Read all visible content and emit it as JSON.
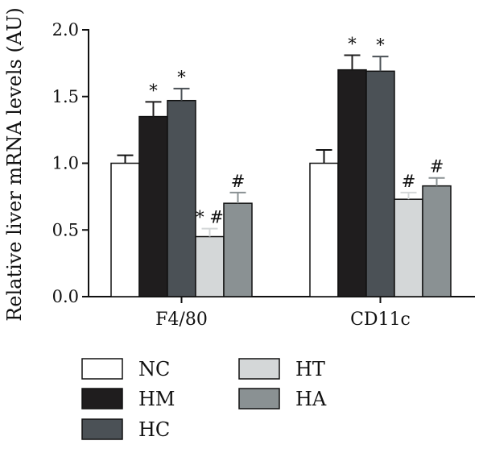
{
  "chart_data": {
    "type": "bar",
    "title": "",
    "xlabel": "",
    "ylabel": "Relative liver mRNA levels (AU)",
    "ylim": [
      0,
      2.0
    ],
    "yticks": [
      "0.0",
      "0.5",
      "1.0",
      "1.5",
      "2.0"
    ],
    "categories": [
      "F4/80",
      "CD11c"
    ],
    "legend_position": "bottom",
    "series": [
      {
        "name": "NC",
        "color": "#ffffff",
        "values": [
          1.0,
          1.0
        ],
        "errors": [
          0.06,
          0.1
        ],
        "annotations": [
          "",
          ""
        ]
      },
      {
        "name": "HM",
        "color": "#1f1d1e",
        "values": [
          1.35,
          1.7
        ],
        "errors": [
          0.11,
          0.11
        ],
        "annotations": [
          "*",
          "*"
        ]
      },
      {
        "name": "HC",
        "color": "#4b5156",
        "values": [
          1.47,
          1.69
        ],
        "errors": [
          0.09,
          0.11
        ],
        "annotations": [
          "*",
          "*"
        ]
      },
      {
        "name": "HT",
        "color": "#d4d7d8",
        "values": [
          0.45,
          0.73
        ],
        "errors": [
          0.06,
          0.05
        ],
        "annotations": [
          "* #",
          "#"
        ]
      },
      {
        "name": "HA",
        "color": "#8a9193",
        "values": [
          0.7,
          0.83
        ],
        "errors": [
          0.08,
          0.06
        ],
        "annotations": [
          "#",
          "#"
        ]
      }
    ]
  }
}
